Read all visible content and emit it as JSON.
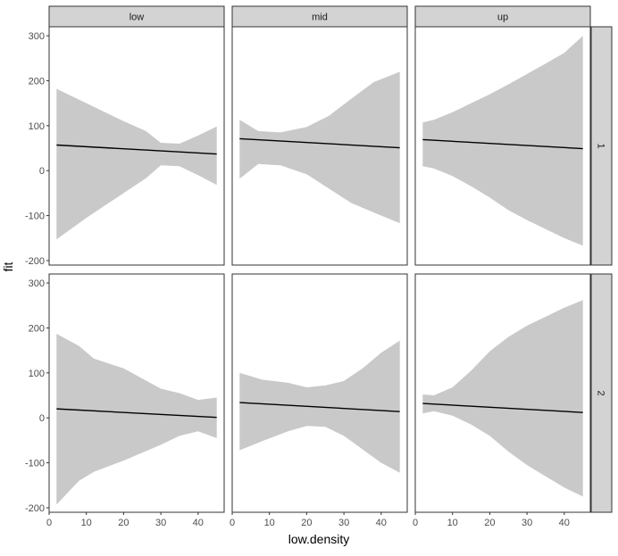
{
  "chart_data": {
    "type": "line",
    "xlabel": "low.density",
    "ylabel": "fit",
    "xlim": [
      0,
      47
    ],
    "ylim": [
      -210,
      320
    ],
    "x_ticks": [
      0,
      10,
      20,
      30,
      40
    ],
    "y_ticks": [
      -200,
      -100,
      0,
      100,
      200,
      300
    ],
    "facet_cols": [
      "low",
      "mid",
      "up"
    ],
    "facet_rows": [
      "1",
      "2"
    ],
    "panels": [
      {
        "col": "low",
        "row": "1",
        "fit": {
          "x": [
            2,
            45
          ],
          "y": [
            57,
            37
          ]
        },
        "band": {
          "x": [
            2,
            10,
            20,
            26,
            30,
            35,
            40,
            45
          ],
          "upper": [
            182,
            150,
            110,
            88,
            62,
            60,
            78,
            98
          ],
          "lower": [
            -153,
            -105,
            -50,
            -17,
            12,
            10,
            -10,
            -32
          ]
        }
      },
      {
        "col": "mid",
        "row": "1",
        "fit": {
          "x": [
            2,
            45
          ],
          "y": [
            71,
            51
          ]
        },
        "band": {
          "x": [
            2,
            7,
            13,
            20,
            26,
            32,
            38,
            45
          ],
          "upper": [
            113,
            88,
            85,
            97,
            122,
            160,
            197,
            220
          ],
          "lower": [
            -18,
            15,
            12,
            -8,
            -40,
            -72,
            -93,
            -117
          ]
        }
      },
      {
        "col": "up",
        "row": "1",
        "fit": {
          "x": [
            2,
            45
          ],
          "y": [
            69,
            49
          ]
        },
        "band": {
          "x": [
            2,
            5,
            10,
            15,
            20,
            25,
            30,
            35,
            40,
            45
          ],
          "upper": [
            107,
            113,
            130,
            150,
            170,
            192,
            215,
            238,
            262,
            300
          ],
          "lower": [
            10,
            5,
            -12,
            -35,
            -60,
            -88,
            -110,
            -130,
            -150,
            -167
          ]
        }
      },
      {
        "col": "low",
        "row": "2",
        "fit": {
          "x": [
            2,
            45
          ],
          "y": [
            20,
            1
          ]
        },
        "band": {
          "x": [
            2,
            8,
            12,
            20,
            30,
            35,
            40,
            45
          ],
          "upper": [
            187,
            160,
            132,
            110,
            65,
            55,
            40,
            45
          ],
          "lower": [
            -193,
            -140,
            -120,
            -95,
            -60,
            -40,
            -30,
            -45
          ]
        }
      },
      {
        "col": "mid",
        "row": "2",
        "fit": {
          "x": [
            2,
            45
          ],
          "y": [
            34,
            14
          ]
        },
        "band": {
          "x": [
            2,
            8,
            15,
            20,
            25,
            30,
            35,
            40,
            45
          ],
          "upper": [
            100,
            85,
            78,
            68,
            72,
            82,
            110,
            145,
            172
          ],
          "lower": [
            -72,
            -52,
            -30,
            -18,
            -20,
            -40,
            -70,
            -100,
            -122
          ]
        }
      },
      {
        "col": "up",
        "row": "2",
        "fit": {
          "x": [
            2,
            45
          ],
          "y": [
            32,
            12
          ]
        },
        "band": {
          "x": [
            2,
            5,
            10,
            15,
            20,
            25,
            30,
            35,
            40,
            45
          ],
          "upper": [
            52,
            50,
            68,
            105,
            148,
            180,
            205,
            225,
            245,
            262
          ],
          "lower": [
            10,
            15,
            5,
            -15,
            -40,
            -75,
            -105,
            -130,
            -155,
            -175
          ]
        }
      }
    ]
  }
}
